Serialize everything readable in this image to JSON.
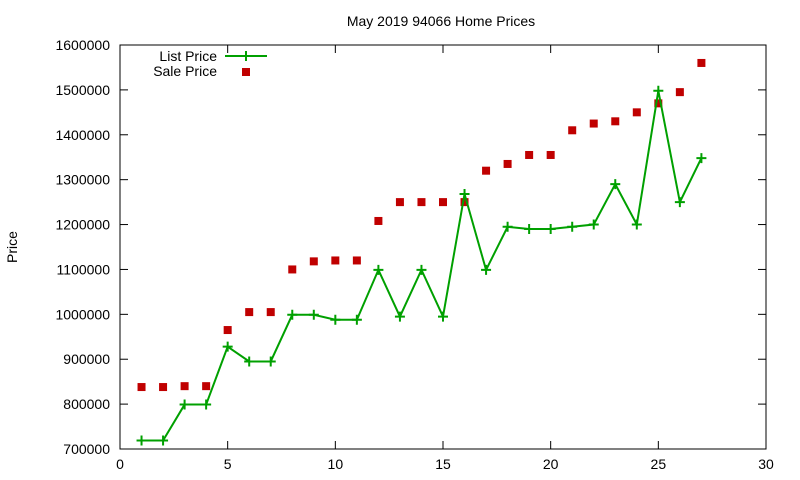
{
  "chart_data": {
    "type": "line",
    "title": "May 2019 94066 Home Prices",
    "xlabel": "",
    "ylabel": "Price",
    "xlim": [
      0,
      30
    ],
    "ylim": [
      700000,
      1600000
    ],
    "xticks": [
      0,
      5,
      10,
      15,
      20,
      25,
      30
    ],
    "yticks": [
      700000,
      800000,
      900000,
      1000000,
      1100000,
      1200000,
      1300000,
      1400000,
      1500000,
      1600000
    ],
    "grid": false,
    "legend_position": "top-left",
    "x": [
      1,
      2,
      3,
      4,
      5,
      6,
      7,
      8,
      9,
      10,
      11,
      12,
      13,
      14,
      15,
      16,
      17,
      18,
      19,
      20,
      21,
      22,
      23,
      24,
      25,
      26,
      27
    ],
    "series": [
      {
        "name": "List Price",
        "style": "line-plus",
        "color": "#00a000",
        "values": [
          719000,
          719000,
          799000,
          799000,
          928000,
          895000,
          895000,
          999000,
          999000,
          988000,
          988000,
          1099000,
          995000,
          1099000,
          995000,
          1268000,
          1099000,
          1195000,
          1190000,
          1190000,
          1195000,
          1200000,
          1290000,
          1200000,
          1498000,
          1250000,
          1348000
        ]
      },
      {
        "name": "Sale Price",
        "style": "square-marker",
        "color": "#c00000",
        "values": [
          838000,
          838000,
          840000,
          840000,
          965000,
          1005000,
          1005000,
          1100000,
          1118000,
          1120000,
          1120000,
          1208000,
          1250000,
          1250000,
          1250000,
          1250000,
          1320000,
          1335000,
          1355000,
          1355000,
          1410000,
          1425000,
          1430000,
          1450000,
          1470000,
          1495000,
          1560000
        ]
      }
    ]
  }
}
